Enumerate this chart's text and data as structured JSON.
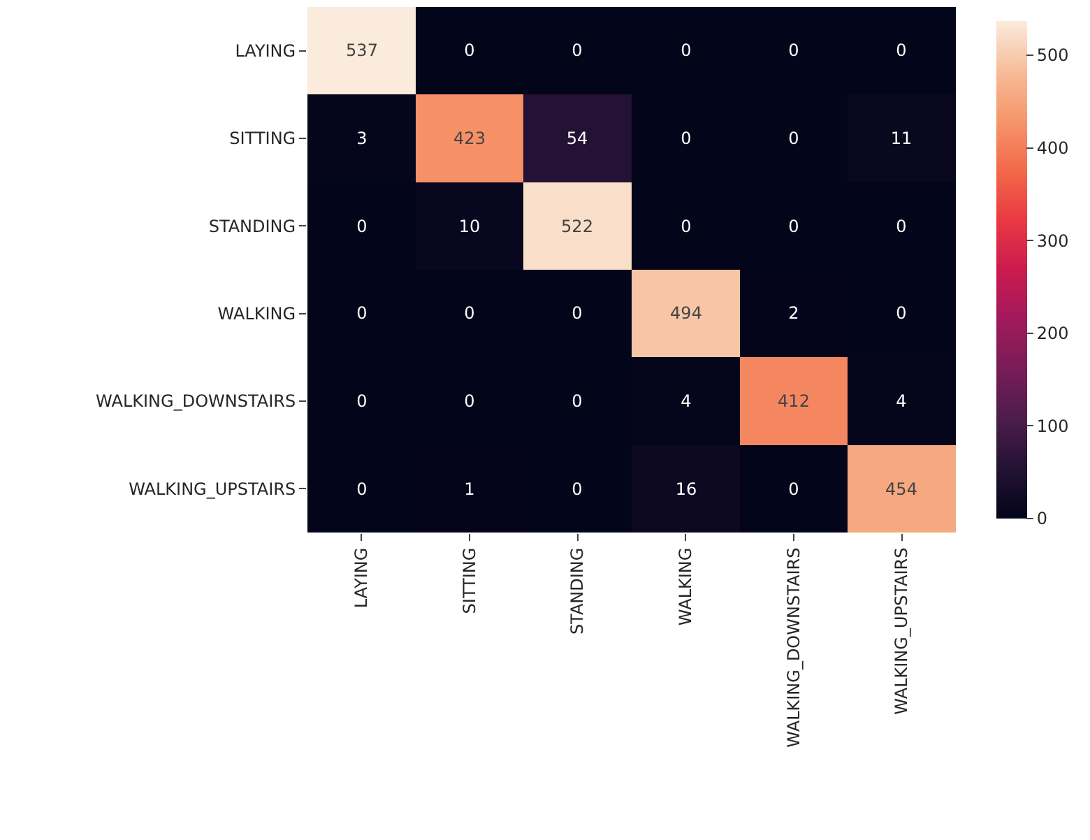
{
  "chart_data": {
    "type": "heatmap",
    "categories": [
      "LAYING",
      "SITTING",
      "STANDING",
      "WALKING",
      "WALKING_DOWNSTAIRS",
      "WALKING_UPSTAIRS"
    ],
    "y_categories": [
      "LAYING",
      "SITTING",
      "STANDING",
      "WALKING",
      "WALKING_DOWNSTAIRS",
      "WALKING_UPSTAIRS"
    ],
    "cells": [
      [
        537,
        0,
        0,
        0,
        0,
        0
      ],
      [
        3,
        423,
        54,
        0,
        0,
        11
      ],
      [
        0,
        10,
        522,
        0,
        0,
        0
      ],
      [
        0,
        0,
        0,
        494,
        2,
        0
      ],
      [
        0,
        0,
        0,
        4,
        412,
        4
      ],
      [
        0,
        1,
        0,
        16,
        0,
        454
      ]
    ],
    "data_labels": true,
    "clim": [
      0,
      537
    ],
    "cticks": [
      0,
      100,
      200,
      300,
      400,
      500
    ]
  }
}
